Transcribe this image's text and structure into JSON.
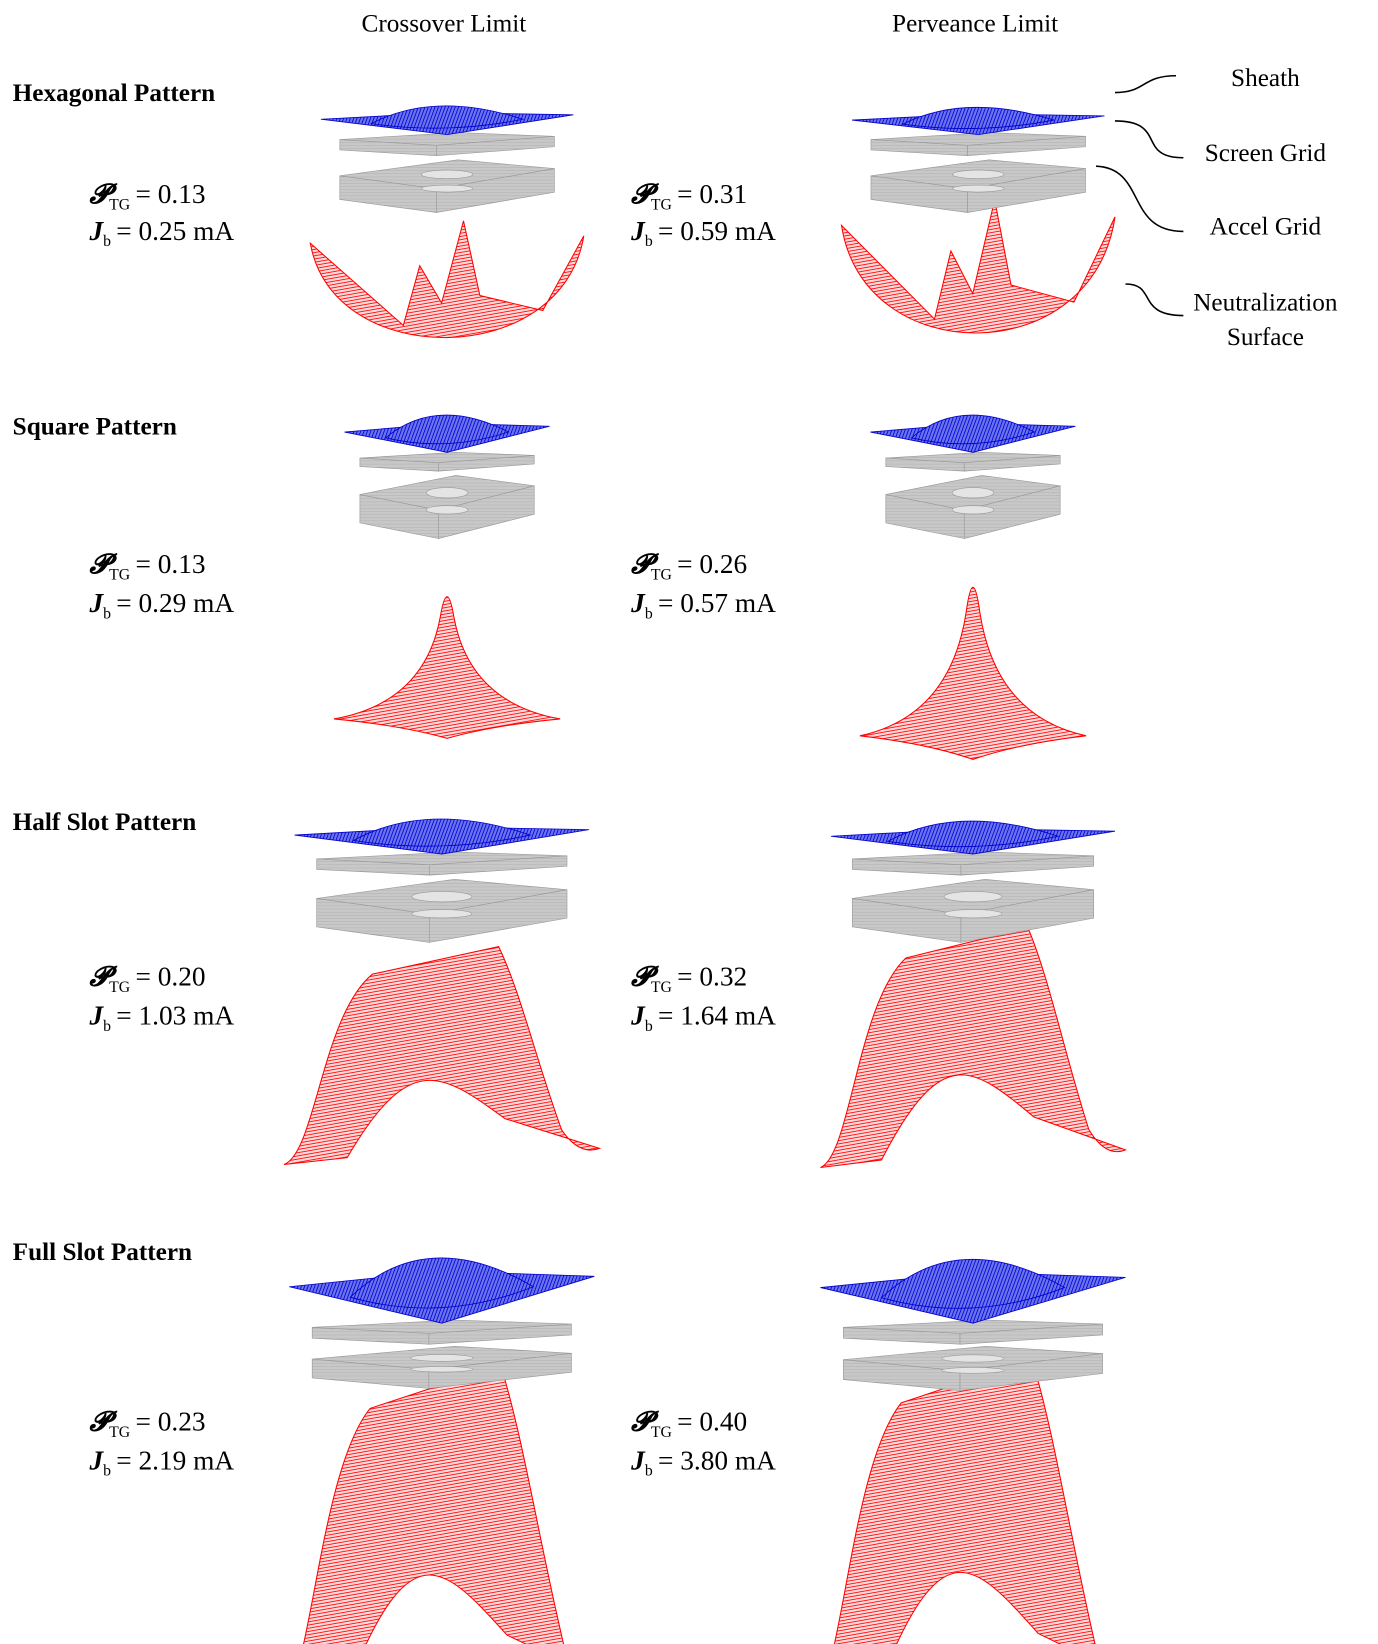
{
  "columns": [
    "Crossover Limit",
    "Perveance Limit"
  ],
  "rows": [
    {
      "title": "Hexagonal Pattern",
      "left": {
        "perveance": {
          "symbol": "𝓟",
          "sub": "TG",
          "value": "= 0.13"
        },
        "current": {
          "symbol": "J",
          "sub": "b",
          "value": "= 0.25 mA"
        }
      },
      "right": {
        "perveance": {
          "symbol": "𝓟",
          "sub": "TG",
          "value": "= 0.31"
        },
        "current": {
          "symbol": "J",
          "sub": "b",
          "value": "= 0.59 mA"
        }
      }
    },
    {
      "title": "Square Pattern",
      "left": {
        "perveance": {
          "symbol": "𝓟",
          "sub": "TG",
          "value": "= 0.13"
        },
        "current": {
          "symbol": "J",
          "sub": "b",
          "value": "= 0.29 mA"
        }
      },
      "right": {
        "perveance": {
          "symbol": "𝓟",
          "sub": "TG",
          "value": "= 0.26"
        },
        "current": {
          "symbol": "J",
          "sub": "b",
          "value": "= 0.57 mA"
        }
      }
    },
    {
      "title": "Half Slot Pattern",
      "left": {
        "perveance": {
          "symbol": "𝓟",
          "sub": "TG",
          "value": "= 0.20"
        },
        "current": {
          "symbol": "J",
          "sub": "b",
          "value": "= 1.03 mA"
        }
      },
      "right": {
        "perveance": {
          "symbol": "𝓟",
          "sub": "TG",
          "value": "= 0.32"
        },
        "current": {
          "symbol": "J",
          "sub": "b",
          "value": "= 1.64 mA"
        }
      }
    },
    {
      "title": "Full Slot Pattern",
      "left": {
        "perveance": {
          "symbol": "𝓟",
          "sub": "TG",
          "value": "= 0.23"
        },
        "current": {
          "symbol": "J",
          "sub": "b",
          "value": "= 2.19 mA"
        }
      },
      "right": {
        "perveance": {
          "symbol": "𝓟",
          "sub": "TG",
          "value": "= 0.40"
        },
        "current": {
          "symbol": "J",
          "sub": "b",
          "value": "= 3.80 mA"
        }
      }
    }
  ],
  "legend": [
    [
      "Sheath"
    ],
    [
      "Screen Grid"
    ],
    [
      "Accel Grid"
    ],
    [
      "Neutralization",
      "Surface"
    ]
  ]
}
